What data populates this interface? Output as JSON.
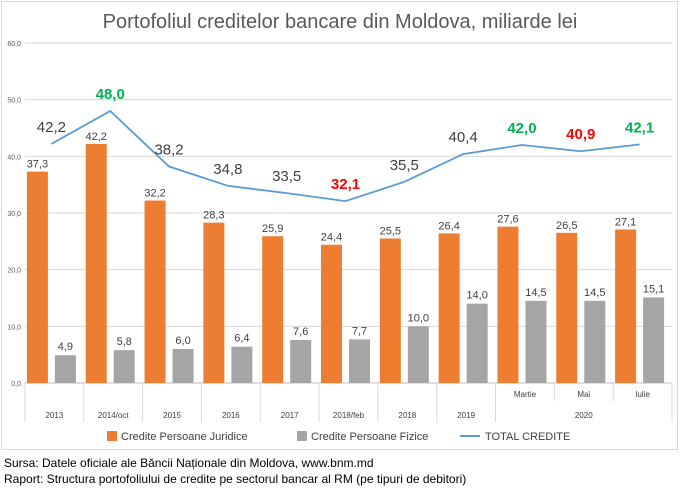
{
  "chart_data": {
    "type": "bar",
    "title": "Portofoliul creditelor bancare din Moldova, miliarde lei",
    "categories": [
      "2013",
      "2014/oct",
      "2015",
      "2016",
      "2017",
      "2018/feb",
      "2018",
      "2019",
      "Martie",
      "Mai",
      "Iulie"
    ],
    "group_label": "2020",
    "ylim": [
      0,
      60
    ],
    "yticks": [
      "0,0",
      "10,0",
      "20,0",
      "30,0",
      "40,0",
      "50,0",
      "60,0"
    ],
    "grid": true,
    "legend_position": "bottom",
    "series": [
      {
        "name": "Credite Persoane Juridice",
        "kind": "bar",
        "color": "#ed7d31",
        "values": [
          37.3,
          42.2,
          32.2,
          28.3,
          25.9,
          24.4,
          25.5,
          26.4,
          27.6,
          26.5,
          27.1
        ],
        "labels": [
          "37,3",
          "42,2",
          "32,2",
          "28,3",
          "25,9",
          "24,4",
          "25,5",
          "26,4",
          "27,6",
          "26,5",
          "27,1"
        ]
      },
      {
        "name": "Credite Persoane Fizice",
        "kind": "bar",
        "color": "#a5a5a5",
        "values": [
          4.9,
          5.8,
          6.0,
          6.4,
          7.6,
          7.7,
          10.0,
          14.0,
          14.5,
          14.5,
          15.1
        ],
        "labels": [
          "4,9",
          "5,8",
          "6,0",
          "6,4",
          "7,6",
          "7,7",
          "10,0",
          "14,0",
          "14,5",
          "14,5",
          "15,1"
        ]
      },
      {
        "name": "TOTAL CREDITE",
        "kind": "line",
        "color": "#5b9bd5",
        "values": [
          42.2,
          48.0,
          38.2,
          34.8,
          33.5,
          32.1,
          35.5,
          40.4,
          42.0,
          40.9,
          42.1
        ],
        "labels": [
          "42,2",
          "48,0",
          "38,2",
          "34,8",
          "33,5",
          "32,1",
          "35,5",
          "40,4",
          "42,0",
          "40,9",
          "42,1"
        ],
        "label_colors": [
          "#404040",
          "#00b050",
          "#404040",
          "#404040",
          "#404040",
          "#ff0000",
          "#404040",
          "#404040",
          "#00b050",
          "#ff0000",
          "#00b050"
        ]
      }
    ]
  },
  "footer": {
    "source": "Sursa: Datele oficiale ale Băncii Naționale din Moldova, www.bnm.md",
    "report": "Raport: Structura portofoliului de credite pe sectorul bancar al RM (pe tipuri de debitori)"
  }
}
